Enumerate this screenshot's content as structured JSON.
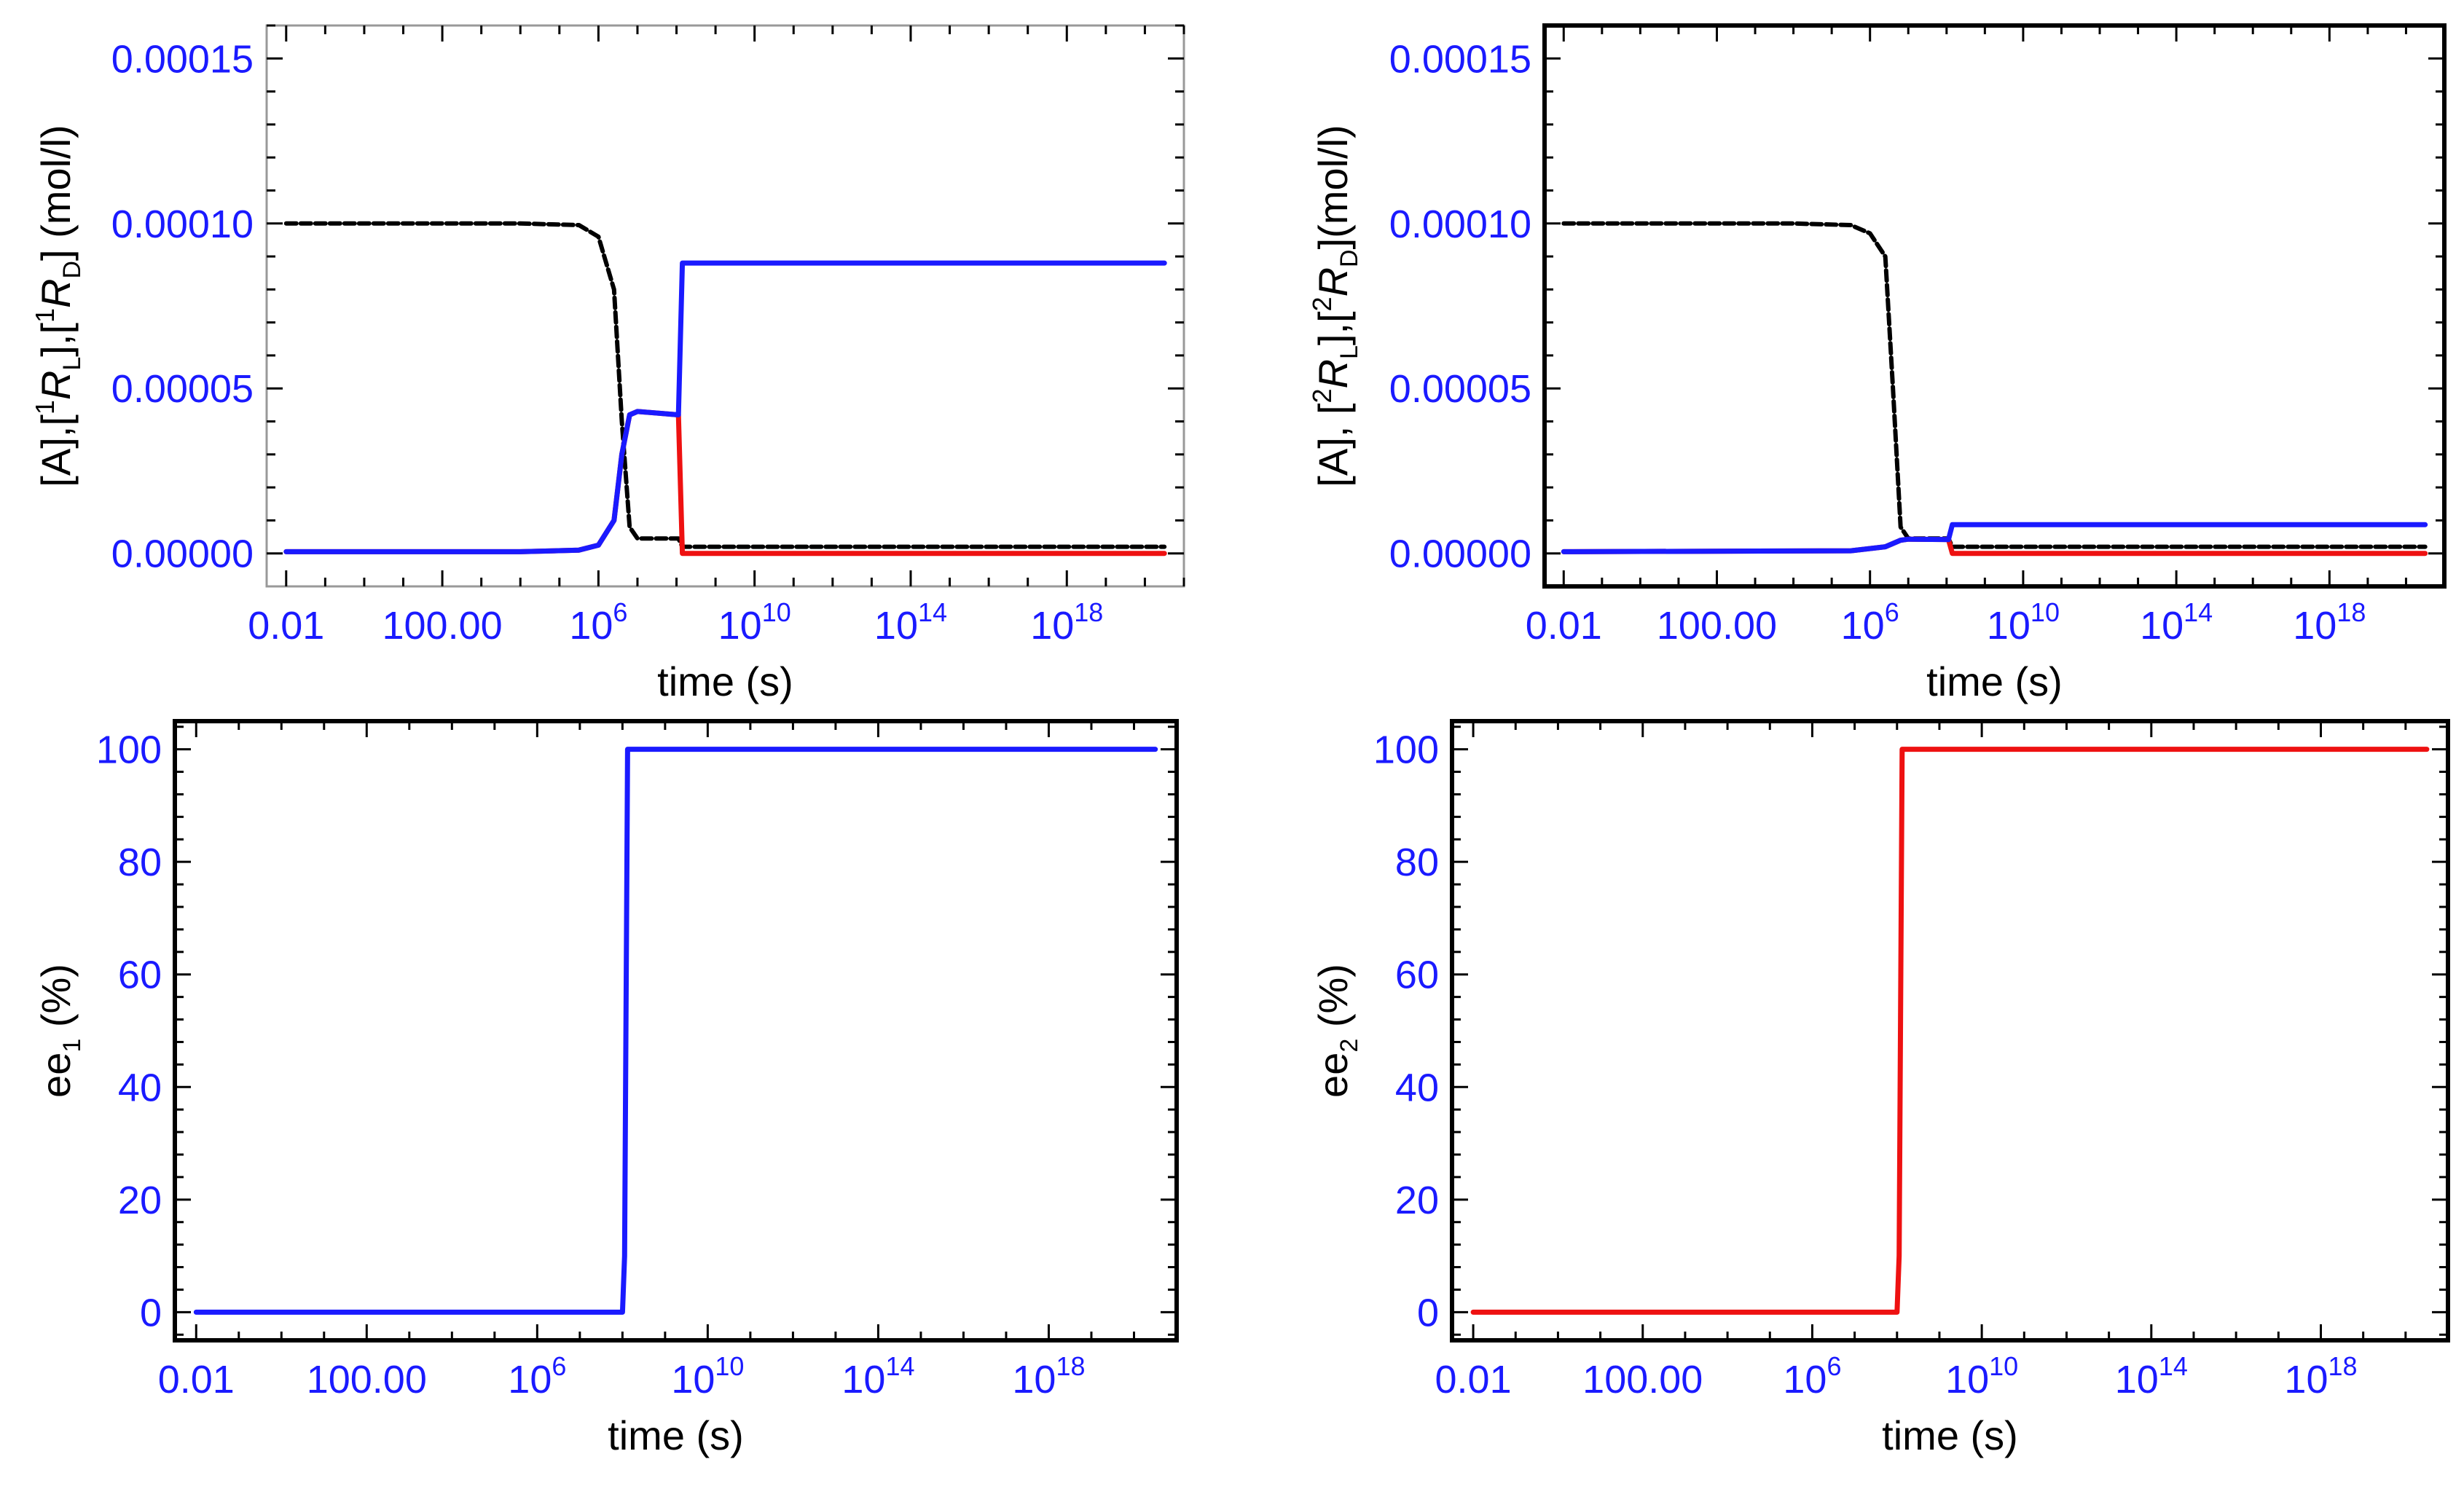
{
  "colors": {
    "tick": "#1a1aff",
    "blue": "#1a1aff",
    "red": "#ee1111",
    "black": "#000000",
    "frame_light": "#999999",
    "frame_dark": "#000000"
  },
  "x_axis": {
    "label": "time (s)",
    "tick_exponents": [
      -2,
      2,
      6,
      10,
      14,
      18
    ],
    "tick_labels": [
      {
        "base": "0.01",
        "exp": ""
      },
      {
        "base": "100.00",
        "exp": ""
      },
      {
        "base": "10",
        "exp": "6"
      },
      {
        "base": "10",
        "exp": "10"
      },
      {
        "base": "10",
        "exp": "14"
      },
      {
        "base": "10",
        "exp": "18"
      }
    ],
    "xlim_log10": [
      -2.5,
      21
    ]
  },
  "chart_data": [
    {
      "id": "top-left",
      "type": "line",
      "xscale": "log",
      "xlabel": "time (s)",
      "ylabel_parts": [
        {
          "t": "[A],["
        },
        {
          "t": "1",
          "sup": true
        },
        {
          "t": "R"
        },
        {
          "t": "L",
          "sub": true
        },
        {
          "t": "],["
        },
        {
          "t": "1",
          "sup": true
        },
        {
          "t": "R"
        },
        {
          "t": "D",
          "sub": true
        },
        {
          "t": "] (mol/l)"
        }
      ],
      "ylim": [
        -1e-05,
        0.00016
      ],
      "yticks": [
        0,
        5e-05,
        0.0001,
        0.00015
      ],
      "ytick_labels": [
        "0.00000",
        "0.00005",
        "0.00010",
        "0.00015"
      ],
      "frame": "light",
      "series": [
        {
          "name": "[A]",
          "color": "black",
          "dash": true,
          "x": [
            -2,
            4,
            5.5,
            6.0,
            6.4,
            6.6,
            6.8,
            7.0,
            8.05,
            8.15,
            20.5
          ],
          "y": [
            0.0001,
            0.0001,
            9.95e-05,
            9.6e-05,
            8e-05,
            4e-05,
            8e-06,
            4.5e-06,
            4.5e-06,
            2e-06,
            2e-06
          ]
        },
        {
          "name": "[1RL]",
          "color": "red",
          "x": [
            -2,
            4,
            5.5,
            6.0,
            6.4,
            6.6,
            6.8,
            7.0,
            8.05,
            8.15,
            20.5
          ],
          "y": [
            5e-07,
            5e-07,
            1e-06,
            2.5e-06,
            1e-05,
            3e-05,
            4.2e-05,
            4.3e-05,
            4.2e-05,
            0.0,
            0.0
          ]
        },
        {
          "name": "[1RD]",
          "color": "blue",
          "x": [
            -2,
            4,
            5.5,
            6.0,
            6.4,
            6.6,
            6.8,
            7.0,
            8.05,
            8.15,
            20.5
          ],
          "y": [
            5e-07,
            5e-07,
            1e-06,
            2.5e-06,
            1e-05,
            3e-05,
            4.2e-05,
            4.3e-05,
            4.2e-05,
            8.8e-05,
            8.8e-05
          ]
        }
      ]
    },
    {
      "id": "top-right",
      "type": "line",
      "xscale": "log",
      "xlabel": "time (s)",
      "ylabel_parts": [
        {
          "t": "[A], ["
        },
        {
          "t": "2",
          "sup": true
        },
        {
          "t": "R"
        },
        {
          "t": "L",
          "sub": true
        },
        {
          "t": "],["
        },
        {
          "t": "2",
          "sup": true
        },
        {
          "t": "R"
        },
        {
          "t": "D",
          "sub": true
        },
        {
          "t": "](mol/l)"
        }
      ],
      "ylim": [
        -1e-05,
        0.00016
      ],
      "yticks": [
        0,
        5e-05,
        0.0001,
        0.00015
      ],
      "ytick_labels": [
        "0.00000",
        "0.00005",
        "0.00010",
        "0.00015"
      ],
      "frame": "dark",
      "series": [
        {
          "name": "[A]",
          "color": "black",
          "dash": true,
          "x": [
            -2,
            4,
            5.5,
            6.0,
            6.4,
            6.6,
            6.8,
            7.0,
            8.05,
            8.15,
            20.5
          ],
          "y": [
            0.0001,
            0.0001,
            9.95e-05,
            9.7e-05,
            9e-05,
            5e-05,
            8e-06,
            4.5e-06,
            4.5e-06,
            2e-06,
            2e-06
          ]
        },
        {
          "name": "[2RL]",
          "color": "red",
          "x": [
            -2,
            5.5,
            6.4,
            6.8,
            7.0,
            8.05,
            8.15,
            20.5
          ],
          "y": [
            5e-07,
            8e-07,
            2e-06,
            4e-06,
            4.3e-06,
            4.2e-06,
            0.0,
            0.0
          ]
        },
        {
          "name": "[2RD]",
          "color": "blue",
          "x": [
            -2,
            5.5,
            6.4,
            6.8,
            7.0,
            8.05,
            8.15,
            20.5
          ],
          "y": [
            5e-07,
            8e-07,
            2e-06,
            4e-06,
            4.3e-06,
            4.2e-06,
            8.7e-06,
            8.7e-06
          ]
        }
      ]
    },
    {
      "id": "bottom-left",
      "type": "line",
      "xscale": "log",
      "xlabel": "time (s)",
      "ylabel_parts": [
        {
          "t": "ee"
        },
        {
          "t": "1",
          "sub": true
        },
        {
          "t": " (%)"
        }
      ],
      "ylim": [
        -5,
        105
      ],
      "yticks": [
        0,
        20,
        40,
        60,
        80,
        100
      ],
      "ytick_labels": [
        "0",
        "20",
        "40",
        "60",
        "80",
        "100"
      ],
      "frame": "dark",
      "series": [
        {
          "name": "ee1",
          "color": "blue",
          "x": [
            -2,
            8.0,
            8.05,
            8.12,
            20.5
          ],
          "y": [
            0,
            0,
            10,
            100,
            100
          ]
        }
      ]
    },
    {
      "id": "bottom-right",
      "type": "line",
      "xscale": "log",
      "xlabel": "time (s)",
      "ylabel_parts": [
        {
          "t": "ee"
        },
        {
          "t": "2",
          "sub": true
        },
        {
          "t": " (%)"
        }
      ],
      "ylim": [
        -5,
        105
      ],
      "yticks": [
        0,
        20,
        40,
        60,
        80,
        100
      ],
      "ytick_labels": [
        "0",
        "20",
        "40",
        "60",
        "80",
        "100"
      ],
      "frame": "dark",
      "series": [
        {
          "name": "ee2",
          "color": "red",
          "x": [
            -2,
            8.0,
            8.05,
            8.12,
            20.5
          ],
          "y": [
            0,
            0,
            10,
            100,
            100
          ]
        }
      ]
    }
  ]
}
